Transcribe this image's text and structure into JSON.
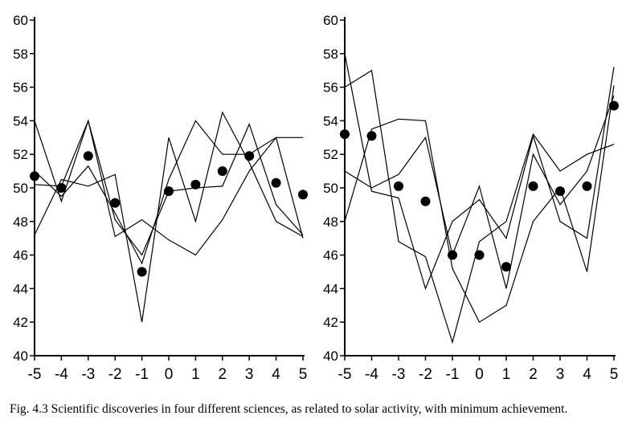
{
  "caption": "Fig. 4.3  Scientific discoveries in four different sciences, as related to solar activity, with minimum achievement.",
  "chart_data": [
    {
      "type": "line",
      "x": [
        -5,
        -4,
        -3,
        -2,
        -1,
        0,
        1,
        2,
        3,
        4,
        5
      ],
      "ylim": [
        40,
        60
      ],
      "yticks": [
        40,
        42,
        44,
        46,
        48,
        50,
        52,
        54,
        56,
        58,
        60
      ],
      "xticks": [
        -5,
        -4,
        -3,
        -2,
        -1,
        0,
        1,
        2,
        3,
        4,
        5
      ],
      "series": [
        {
          "values": [
            54.0,
            49.2,
            54.0,
            47.1,
            48.1,
            46.9,
            46.0,
            48.1,
            51.0,
            53.0,
            53.0
          ]
        },
        {
          "values": [
            47.2,
            50.5,
            50.1,
            50.8,
            42.0,
            53.0,
            48.0,
            54.5,
            51.5,
            48.0,
            47.1
          ]
        },
        {
          "values": [
            51.0,
            49.5,
            51.3,
            48.5,
            45.5,
            50.5,
            54.0,
            52.0,
            52.0,
            53.0,
            47.0
          ]
        },
        {
          "values": [
            50.2,
            50.1,
            54.0,
            48.1,
            46.0,
            49.8,
            50.0,
            50.1,
            53.8,
            49.0,
            47.2
          ]
        }
      ],
      "markers": [
        50.7,
        50.0,
        51.9,
        49.1,
        45.0,
        49.8,
        50.2,
        51.0,
        51.9,
        50.3,
        49.6
      ]
    },
    {
      "type": "line",
      "x": [
        -5,
        -4,
        -3,
        -2,
        -1,
        0,
        1,
        2,
        3,
        4,
        5
      ],
      "ylim": [
        40,
        60
      ],
      "yticks": [
        40,
        42,
        44,
        46,
        48,
        50,
        52,
        54,
        56,
        58,
        60
      ],
      "xticks": [
        -5,
        -4,
        -3,
        -2,
        -1,
        0,
        1,
        2,
        3,
        4,
        5
      ],
      "series": [
        {
          "values": [
            56.0,
            57.0,
            46.8,
            45.9,
            40.8,
            46.8,
            48.0,
            53.2,
            51.0,
            52.0,
            52.6
          ]
        },
        {
          "values": [
            58.0,
            49.8,
            49.4,
            44.0,
            48.0,
            49.3,
            47.0,
            53.1,
            48.0,
            47.0,
            57.2
          ]
        },
        {
          "values": [
            48.0,
            53.5,
            54.1,
            54.0,
            45.2,
            42.0,
            43.0,
            48.0,
            50.0,
            45.0,
            56.1
          ]
        },
        {
          "values": [
            51.0,
            50.0,
            50.8,
            53.0,
            46.0,
            50.1,
            44.0,
            52.0,
            49.0,
            51.0,
            55.5
          ]
        }
      ],
      "markers": [
        53.2,
        53.1,
        50.1,
        49.2,
        46.0,
        46.0,
        45.3,
        50.1,
        49.8,
        50.1,
        54.9
      ]
    }
  ]
}
